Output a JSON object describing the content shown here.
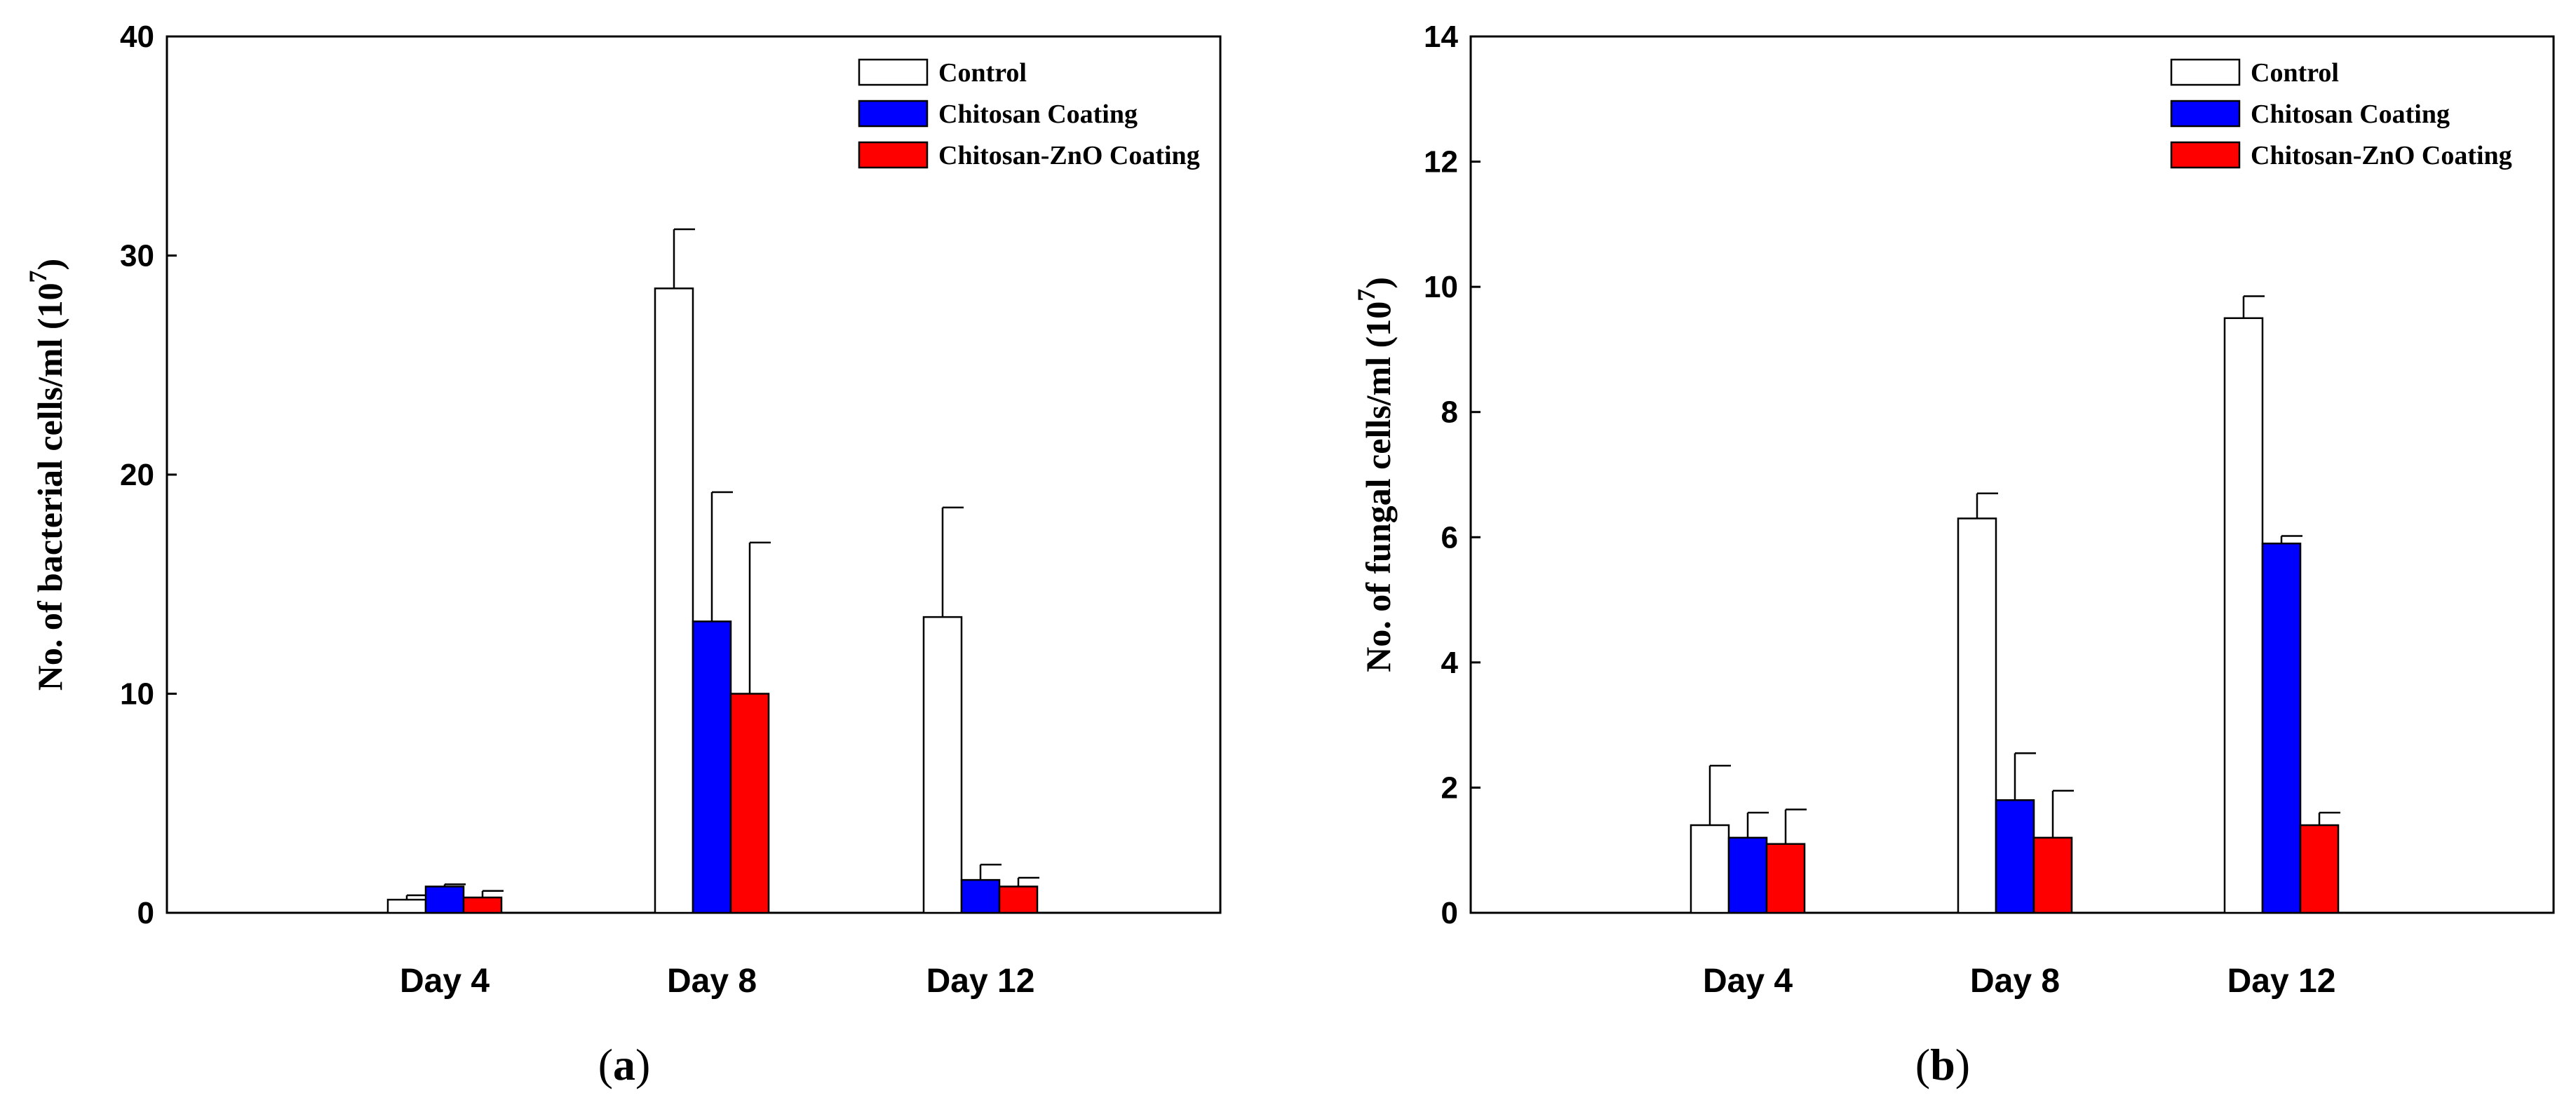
{
  "chart_data": [
    {
      "type": "bar",
      "panel_label": "a",
      "ylabel": "No. of bacterial cells/ml (10",
      "ylabel_sup": "7",
      "ylabel_close": ")",
      "ylim": [
        0,
        40
      ],
      "yticks": [
        "0",
        "10",
        "20",
        "30",
        "40"
      ],
      "ytick_values": [
        0,
        10,
        20,
        30,
        40
      ],
      "categories": [
        "Day 4",
        "Day 8",
        "Day 12"
      ],
      "legend_position": "top-right",
      "grid": false,
      "series": [
        {
          "name": "Control",
          "color": "#ffffff",
          "values": [
            0.6,
            28.5,
            13.5
          ],
          "errors": [
            0.2,
            2.7,
            5.0
          ]
        },
        {
          "name": "Chitosan Coating",
          "color": "#0000ff",
          "values": [
            1.2,
            13.3,
            1.5
          ],
          "errors": [
            0.1,
            5.9,
            0.7
          ]
        },
        {
          "name": "Chitosan-ZnO Coating",
          "color": "#ff0000",
          "values": [
            0.7,
            10.0,
            1.2
          ],
          "errors": [
            0.3,
            6.9,
            0.4
          ]
        }
      ]
    },
    {
      "type": "bar",
      "panel_label": "b",
      "ylabel": "No. of fungal cells/ml (10",
      "ylabel_sup": "7",
      "ylabel_close": ")",
      "ylim": [
        0,
        14
      ],
      "yticks": [
        "0",
        "2",
        "4",
        "6",
        "8",
        "10",
        "12",
        "14"
      ],
      "ytick_values": [
        0,
        2,
        4,
        6,
        8,
        10,
        12,
        14
      ],
      "categories": [
        "Day 4",
        "Day 8",
        "Day 12"
      ],
      "legend_position": "top-right",
      "grid": false,
      "series": [
        {
          "name": "Control",
          "color": "#ffffff",
          "values": [
            1.4,
            6.3,
            9.5
          ],
          "errors": [
            0.95,
            0.4,
            0.35
          ]
        },
        {
          "name": "Chitosan Coating",
          "color": "#0000ff",
          "values": [
            1.2,
            1.8,
            5.9
          ],
          "errors": [
            0.4,
            0.75,
            0.12
          ]
        },
        {
          "name": "Chitosan-ZnO Coating",
          "color": "#ff0000",
          "values": [
            1.1,
            1.2,
            1.4
          ],
          "errors": [
            0.55,
            0.75,
            0.2
          ]
        }
      ]
    }
  ]
}
